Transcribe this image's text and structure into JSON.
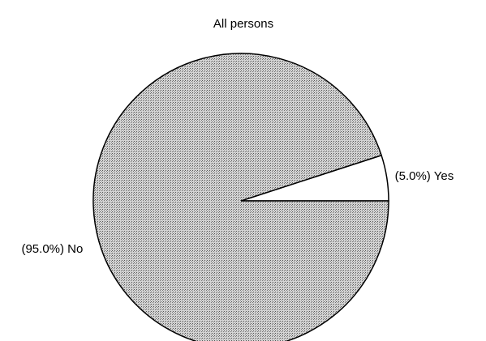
{
  "chart_data": {
    "type": "pie",
    "title": "All persons",
    "categories": [
      "Yes",
      "No"
    ],
    "values": [
      5.0,
      95.0
    ],
    "value_labels": [
      "(5.0%)",
      "(95.0%)"
    ],
    "colors": [
      "#ffffff",
      "#bdbdbd"
    ]
  }
}
